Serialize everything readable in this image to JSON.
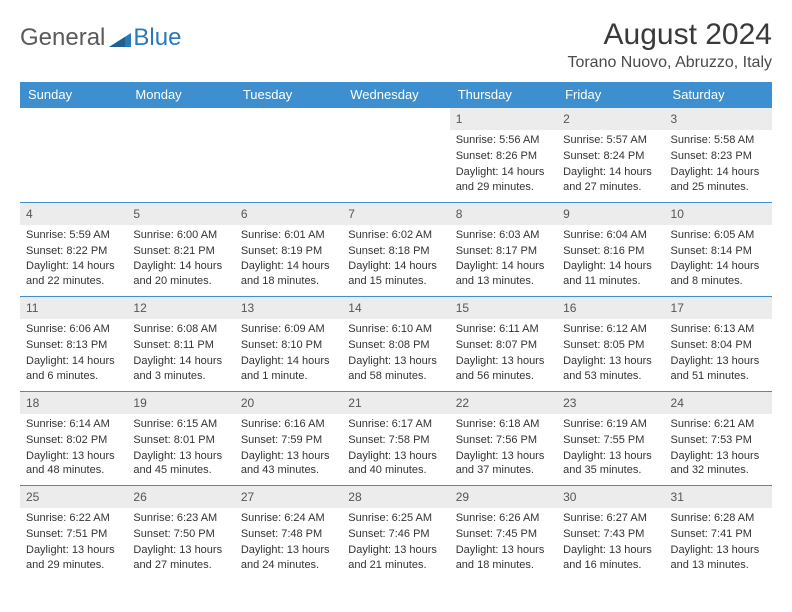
{
  "logo": {
    "word1": "General",
    "word2": "Blue"
  },
  "title": {
    "month": "August 2024",
    "location": "Torano Nuovo, Abruzzo, Italy"
  },
  "colors": {
    "header_bg": "#3d8fcf",
    "header_text": "#ffffff",
    "daynum_bg": "#ececec",
    "border": "#3d8fcf",
    "logo_gray": "#5a5a5a",
    "logo_blue": "#2a7ab8",
    "text": "#333333"
  },
  "dayNames": [
    "Sunday",
    "Monday",
    "Tuesday",
    "Wednesday",
    "Thursday",
    "Friday",
    "Saturday"
  ],
  "layout": {
    "firstDayOffset": 4,
    "daysInMonth": 31
  },
  "days": {
    "1": {
      "sunrise": "5:56 AM",
      "sunset": "8:26 PM",
      "daylight": "14 hours and 29 minutes."
    },
    "2": {
      "sunrise": "5:57 AM",
      "sunset": "8:24 PM",
      "daylight": "14 hours and 27 minutes."
    },
    "3": {
      "sunrise": "5:58 AM",
      "sunset": "8:23 PM",
      "daylight": "14 hours and 25 minutes."
    },
    "4": {
      "sunrise": "5:59 AM",
      "sunset": "8:22 PM",
      "daylight": "14 hours and 22 minutes."
    },
    "5": {
      "sunrise": "6:00 AM",
      "sunset": "8:21 PM",
      "daylight": "14 hours and 20 minutes."
    },
    "6": {
      "sunrise": "6:01 AM",
      "sunset": "8:19 PM",
      "daylight": "14 hours and 18 minutes."
    },
    "7": {
      "sunrise": "6:02 AM",
      "sunset": "8:18 PM",
      "daylight": "14 hours and 15 minutes."
    },
    "8": {
      "sunrise": "6:03 AM",
      "sunset": "8:17 PM",
      "daylight": "14 hours and 13 minutes."
    },
    "9": {
      "sunrise": "6:04 AM",
      "sunset": "8:16 PM",
      "daylight": "14 hours and 11 minutes."
    },
    "10": {
      "sunrise": "6:05 AM",
      "sunset": "8:14 PM",
      "daylight": "14 hours and 8 minutes."
    },
    "11": {
      "sunrise": "6:06 AM",
      "sunset": "8:13 PM",
      "daylight": "14 hours and 6 minutes."
    },
    "12": {
      "sunrise": "6:08 AM",
      "sunset": "8:11 PM",
      "daylight": "14 hours and 3 minutes."
    },
    "13": {
      "sunrise": "6:09 AM",
      "sunset": "8:10 PM",
      "daylight": "14 hours and 1 minute."
    },
    "14": {
      "sunrise": "6:10 AM",
      "sunset": "8:08 PM",
      "daylight": "13 hours and 58 minutes."
    },
    "15": {
      "sunrise": "6:11 AM",
      "sunset": "8:07 PM",
      "daylight": "13 hours and 56 minutes."
    },
    "16": {
      "sunrise": "6:12 AM",
      "sunset": "8:05 PM",
      "daylight": "13 hours and 53 minutes."
    },
    "17": {
      "sunrise": "6:13 AM",
      "sunset": "8:04 PM",
      "daylight": "13 hours and 51 minutes."
    },
    "18": {
      "sunrise": "6:14 AM",
      "sunset": "8:02 PM",
      "daylight": "13 hours and 48 minutes."
    },
    "19": {
      "sunrise": "6:15 AM",
      "sunset": "8:01 PM",
      "daylight": "13 hours and 45 minutes."
    },
    "20": {
      "sunrise": "6:16 AM",
      "sunset": "7:59 PM",
      "daylight": "13 hours and 43 minutes."
    },
    "21": {
      "sunrise": "6:17 AM",
      "sunset": "7:58 PM",
      "daylight": "13 hours and 40 minutes."
    },
    "22": {
      "sunrise": "6:18 AM",
      "sunset": "7:56 PM",
      "daylight": "13 hours and 37 minutes."
    },
    "23": {
      "sunrise": "6:19 AM",
      "sunset": "7:55 PM",
      "daylight": "13 hours and 35 minutes."
    },
    "24": {
      "sunrise": "6:21 AM",
      "sunset": "7:53 PM",
      "daylight": "13 hours and 32 minutes."
    },
    "25": {
      "sunrise": "6:22 AM",
      "sunset": "7:51 PM",
      "daylight": "13 hours and 29 minutes."
    },
    "26": {
      "sunrise": "6:23 AM",
      "sunset": "7:50 PM",
      "daylight": "13 hours and 27 minutes."
    },
    "27": {
      "sunrise": "6:24 AM",
      "sunset": "7:48 PM",
      "daylight": "13 hours and 24 minutes."
    },
    "28": {
      "sunrise": "6:25 AM",
      "sunset": "7:46 PM",
      "daylight": "13 hours and 21 minutes."
    },
    "29": {
      "sunrise": "6:26 AM",
      "sunset": "7:45 PM",
      "daylight": "13 hours and 18 minutes."
    },
    "30": {
      "sunrise": "6:27 AM",
      "sunset": "7:43 PM",
      "daylight": "13 hours and 16 minutes."
    },
    "31": {
      "sunrise": "6:28 AM",
      "sunset": "7:41 PM",
      "daylight": "13 hours and 13 minutes."
    }
  },
  "labels": {
    "sunrise": "Sunrise:",
    "sunset": "Sunset:",
    "daylight": "Daylight:"
  }
}
